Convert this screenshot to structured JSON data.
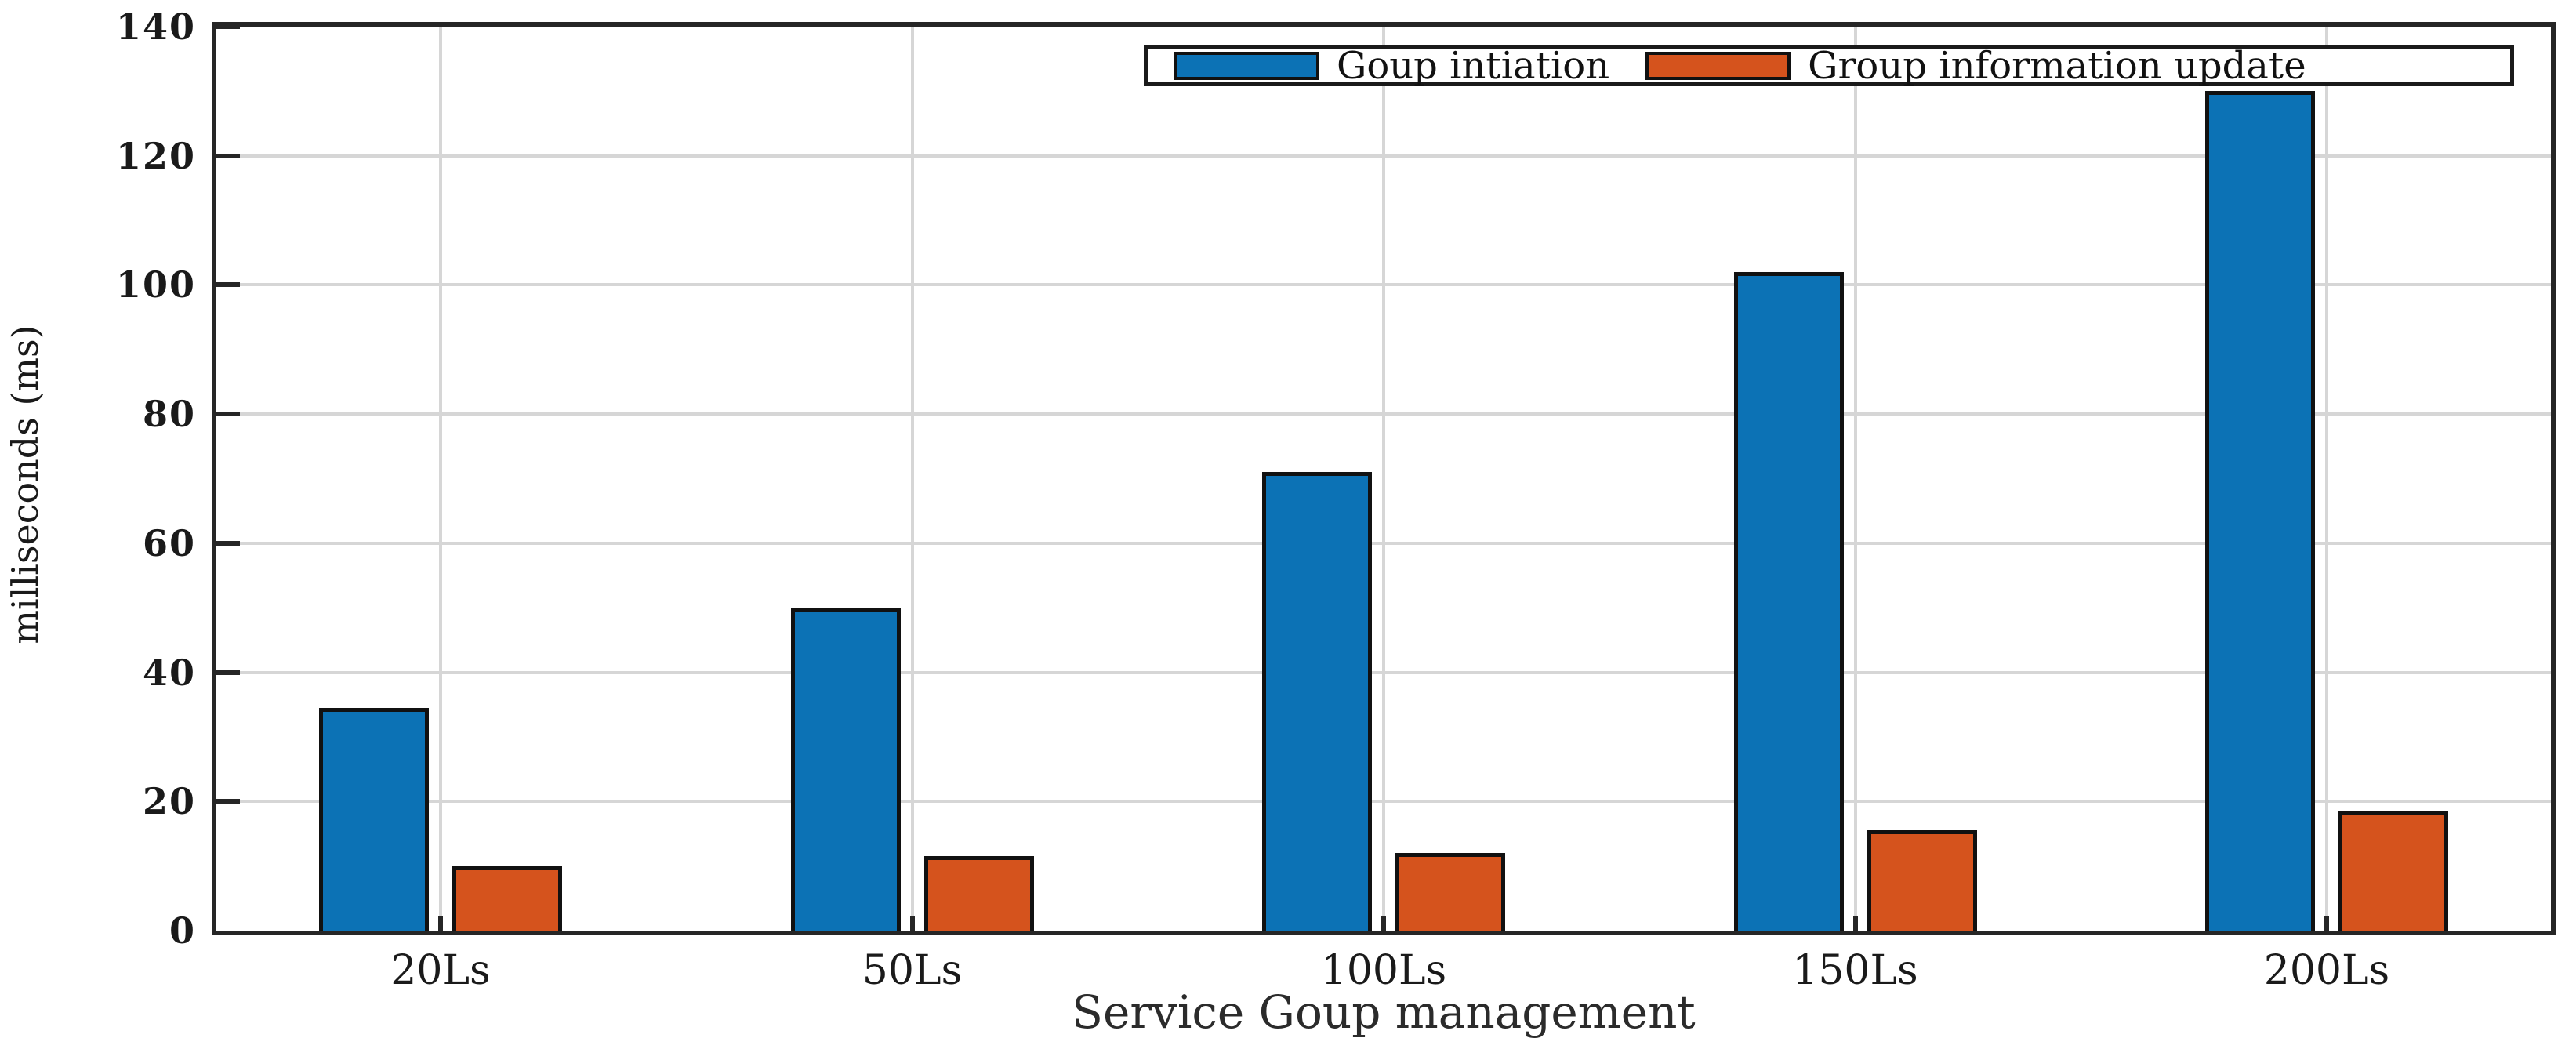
{
  "figure": {
    "background": "#ffffff",
    "axis_color": "#262626",
    "grid_color": "#d6d6d6",
    "bar_edge_color": "#111111"
  },
  "chart_data": {
    "type": "bar",
    "title": "",
    "xlabel": "Service Goup management",
    "ylabel": "milliseconds (ms)",
    "categories": [
      "20Ls",
      "50Ls",
      "100Ls",
      "150Ls",
      "200Ls"
    ],
    "series": [
      {
        "name": "Goup intiation",
        "color": "#0c72b5",
        "values": [
          34.5,
          50,
          71,
          102,
          130
        ]
      },
      {
        "name": "Group information update",
        "color": "#d5531d",
        "values": [
          10,
          11.5,
          12,
          15.5,
          18.5
        ]
      }
    ],
    "ylim": [
      0,
      140
    ],
    "yticks": [
      0,
      20,
      40,
      60,
      80,
      100,
      120,
      140
    ],
    "grid": "on",
    "legend_position": "top-right-inside"
  }
}
